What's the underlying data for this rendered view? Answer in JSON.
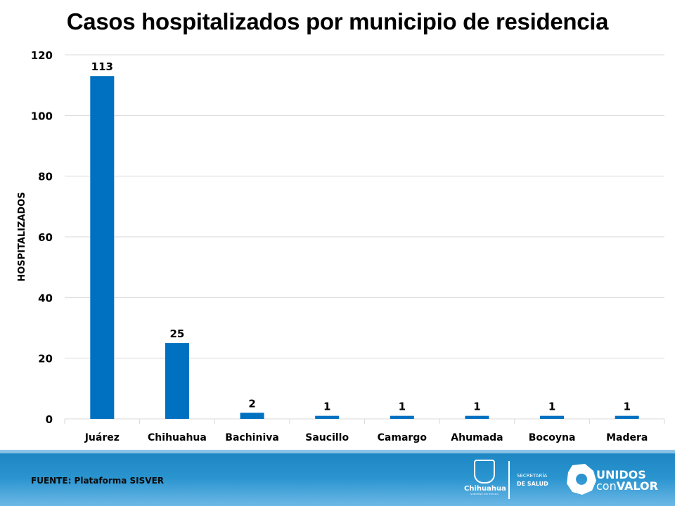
{
  "chart_data": {
    "type": "bar",
    "title": "Casos hospitalizados por municipio de residencia",
    "xlabel": "",
    "ylabel": "HOSPITALIZADOS",
    "categories": [
      "Juárez",
      "Chihuahua",
      "Bachiniva",
      "Saucillo",
      "Camargo",
      "Ahumada",
      "Bocoyna",
      "Madera"
    ],
    "values": [
      113,
      25,
      2,
      1,
      1,
      1,
      1,
      1
    ],
    "data_labels": [
      "113",
      "25",
      "2",
      "1",
      "1",
      "1",
      "1",
      "1"
    ],
    "ylim": [
      0,
      120
    ],
    "yticks": [
      0,
      20,
      40,
      60,
      80,
      100,
      120
    ],
    "ytick_labels": [
      "0",
      "20",
      "40",
      "60",
      "80",
      "100",
      "120"
    ],
    "grid": true,
    "legend": "none",
    "bar_color": "#0070c0"
  },
  "footer": {
    "source": "FUENTE: Plataforma SISVER",
    "logo_state": "Chihuahua",
    "logo_state_sub": "GOBIERNO DEL ESTADO",
    "secretaria_line1": "SECRETARÍA",
    "secretaria_line2": "DE SALUD",
    "campaign_line1": "UNIDOS",
    "campaign_line2a": "con",
    "campaign_line2b": "VALOR"
  }
}
